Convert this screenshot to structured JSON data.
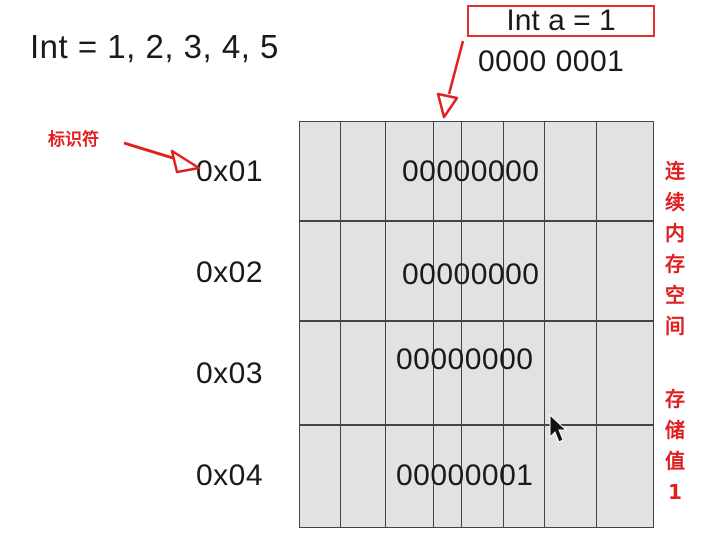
{
  "heading": "Int = 1, 2, 3, 4, 5",
  "variable_box": "Int a = 1",
  "binary_value": "0000 0001",
  "identifier_label": "标识符",
  "side_label_top": [
    "连",
    "续",
    "内",
    "存",
    "空",
    "间"
  ],
  "side_label_bottom": [
    "存",
    "储",
    "值",
    "1"
  ],
  "memory": [
    {
      "address": "0x01",
      "value": "00000000"
    },
    {
      "address": "0x02",
      "value": "00000000"
    },
    {
      "address": "0x03",
      "value": "00000000"
    },
    {
      "address": "0x04",
      "value": "00000001"
    }
  ],
  "colors": {
    "annotation_red": "#e02020",
    "grid_fill": "#e2e2e2",
    "grid_line": "#444444"
  }
}
